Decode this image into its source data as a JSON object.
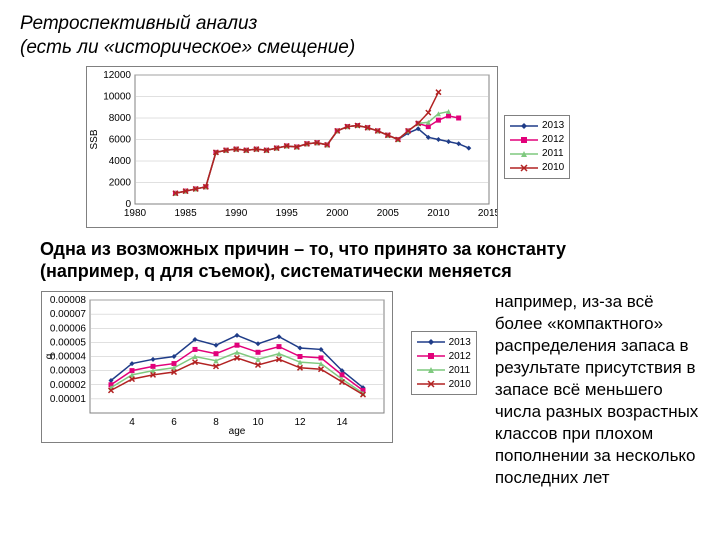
{
  "title_line1": "Ретроспективный анализ",
  "title_line2": "(есть ли «историческое» смещение)",
  "mid_line1": "Одна из возможных причин – то, что принято за константу",
  "mid_line2": "(например, q для съемок), систематически меняется",
  "side_text": "например, из-за всё более «компактного» распределения запаса в результате присутствия в запасе всё меньшего числа разных возрастных классов при плохом пополнении за несколько последних лет",
  "legend": [
    {
      "label": "2013",
      "color": "#1f3c88",
      "marker": "diamond"
    },
    {
      "label": "2012",
      "color": "#e2007a",
      "marker": "square"
    },
    {
      "label": "2011",
      "color": "#7fc97f",
      "marker": "triangle"
    },
    {
      "label": "2010",
      "color": "#b22222",
      "marker": "x"
    }
  ],
  "chart1": {
    "type": "line",
    "ylabel": "SSB",
    "xlim": [
      1980,
      2015
    ],
    "ylim": [
      0,
      12000
    ],
    "xticks": [
      1980,
      1985,
      1990,
      1995,
      2000,
      2005,
      2010,
      2015
    ],
    "yticks": [
      0,
      2000,
      4000,
      6000,
      8000,
      10000,
      12000
    ],
    "gridline_color": "#c0c0c0",
    "series": [
      {
        "color": "#1f3c88",
        "marker": "diamond",
        "x": [
          1984,
          1985,
          1986,
          1987,
          1988,
          1989,
          1990,
          1991,
          1992,
          1993,
          1994,
          1995,
          1996,
          1997,
          1998,
          1999,
          2000,
          2001,
          2002,
          2003,
          2004,
          2005,
          2006,
          2007,
          2008,
          2009,
          2010,
          2011,
          2012,
          2013
        ],
        "y": [
          1000,
          1200,
          1400,
          1600,
          4800,
          5000,
          5100,
          5000,
          5100,
          5000,
          5200,
          5400,
          5300,
          5600,
          5700,
          5500,
          6800,
          7200,
          7300,
          7100,
          6800,
          6400,
          6000,
          6600,
          7000,
          6200,
          6000,
          5800,
          5600,
          5200
        ]
      },
      {
        "color": "#e2007a",
        "marker": "square",
        "x": [
          1984,
          1985,
          1986,
          1987,
          1988,
          1989,
          1990,
          1991,
          1992,
          1993,
          1994,
          1995,
          1996,
          1997,
          1998,
          1999,
          2000,
          2001,
          2002,
          2003,
          2004,
          2005,
          2006,
          2007,
          2008,
          2009,
          2010,
          2011,
          2012
        ],
        "y": [
          1000,
          1200,
          1400,
          1600,
          4800,
          5000,
          5100,
          5000,
          5100,
          5000,
          5200,
          5400,
          5300,
          5600,
          5700,
          5500,
          6800,
          7200,
          7300,
          7100,
          6800,
          6400,
          6000,
          6800,
          7500,
          7200,
          7800,
          8200,
          8000
        ]
      },
      {
        "color": "#7fc97f",
        "marker": "triangle",
        "x": [
          1984,
          1985,
          1986,
          1987,
          1988,
          1989,
          1990,
          1991,
          1992,
          1993,
          1994,
          1995,
          1996,
          1997,
          1998,
          1999,
          2000,
          2001,
          2002,
          2003,
          2004,
          2005,
          2006,
          2007,
          2008,
          2009,
          2010,
          2011
        ],
        "y": [
          1000,
          1200,
          1400,
          1600,
          4800,
          5000,
          5100,
          5000,
          5100,
          5000,
          5200,
          5400,
          5300,
          5600,
          5700,
          5500,
          6800,
          7200,
          7300,
          7100,
          6800,
          6400,
          6000,
          6800,
          7500,
          7600,
          8400,
          8600
        ]
      },
      {
        "color": "#b22222",
        "marker": "x",
        "x": [
          1984,
          1985,
          1986,
          1987,
          1988,
          1989,
          1990,
          1991,
          1992,
          1993,
          1994,
          1995,
          1996,
          1997,
          1998,
          1999,
          2000,
          2001,
          2002,
          2003,
          2004,
          2005,
          2006,
          2007,
          2008,
          2009,
          2010
        ],
        "y": [
          1000,
          1200,
          1400,
          1600,
          4800,
          5000,
          5100,
          5000,
          5100,
          5000,
          5200,
          5400,
          5300,
          5600,
          5700,
          5500,
          6800,
          7200,
          7300,
          7100,
          6800,
          6400,
          6000,
          6800,
          7500,
          8500,
          10400
        ]
      }
    ]
  },
  "chart2": {
    "type": "line",
    "ylabel": "q",
    "xlabel": "age",
    "xlim": [
      2,
      16
    ],
    "ylim": [
      0,
      8e-05
    ],
    "xticks": [
      4,
      6,
      8,
      10,
      12,
      14
    ],
    "yticks": [
      0,
      1e-05,
      2e-05,
      3e-05,
      4e-05,
      5e-05,
      6e-05,
      7e-05,
      8e-05
    ],
    "ytick_labels": [
      "0.00001",
      "0.00002",
      "0.00003",
      "0.00004",
      "0.00005",
      "0.00006",
      "0.00007",
      "0.00008"
    ],
    "gridline_color": "#c0c0c0",
    "series": [
      {
        "color": "#1f3c88",
        "marker": "diamond",
        "x": [
          3,
          4,
          5,
          6,
          7,
          8,
          9,
          10,
          11,
          12,
          13,
          14,
          15
        ],
        "y": [
          2.3e-05,
          3.5e-05,
          3.8e-05,
          4e-05,
          5.2e-05,
          4.8e-05,
          5.5e-05,
          4.9e-05,
          5.4e-05,
          4.6e-05,
          4.5e-05,
          3e-05,
          1.8e-05
        ]
      },
      {
        "color": "#e2007a",
        "marker": "square",
        "x": [
          3,
          4,
          5,
          6,
          7,
          8,
          9,
          10,
          11,
          12,
          13,
          14,
          15
        ],
        "y": [
          2e-05,
          3e-05,
          3.3e-05,
          3.5e-05,
          4.5e-05,
          4.2e-05,
          4.8e-05,
          4.3e-05,
          4.7e-05,
          4e-05,
          3.9e-05,
          2.7e-05,
          1.6e-05
        ]
      },
      {
        "color": "#7fc97f",
        "marker": "triangle",
        "x": [
          3,
          4,
          5,
          6,
          7,
          8,
          9,
          10,
          11,
          12,
          13,
          14,
          15
        ],
        "y": [
          1.8e-05,
          2.7e-05,
          3e-05,
          3.2e-05,
          4e-05,
          3.7e-05,
          4.3e-05,
          3.8e-05,
          4.2e-05,
          3.6e-05,
          3.5e-05,
          2.4e-05,
          1.4e-05
        ]
      },
      {
        "color": "#b22222",
        "marker": "x",
        "x": [
          3,
          4,
          5,
          6,
          7,
          8,
          9,
          10,
          11,
          12,
          13,
          14,
          15
        ],
        "y": [
          1.6e-05,
          2.4e-05,
          2.7e-05,
          2.9e-05,
          3.6e-05,
          3.3e-05,
          3.9e-05,
          3.4e-05,
          3.8e-05,
          3.2e-05,
          3.1e-05,
          2.2e-05,
          1.3e-05
        ]
      }
    ]
  }
}
